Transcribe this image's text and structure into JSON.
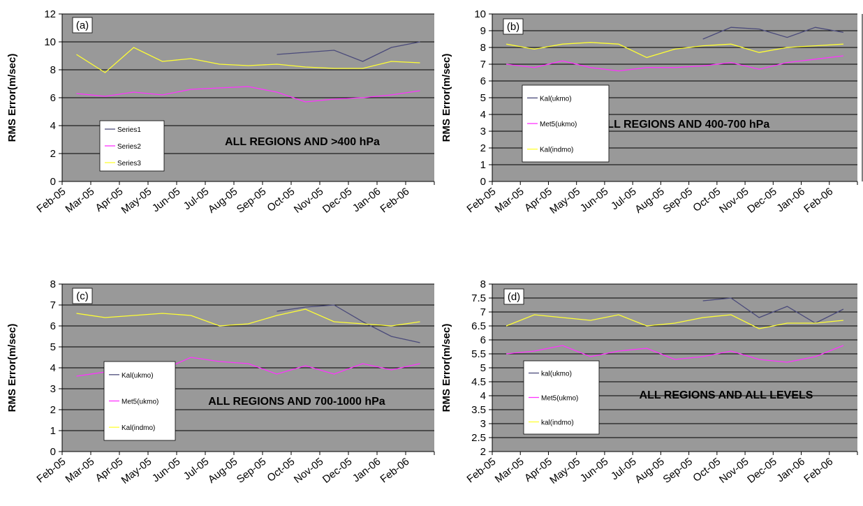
{
  "colors": {
    "plot_bg": "#999999",
    "grid": "#000000",
    "series_dark": "#4a4a7a",
    "series_magenta": "#ff33ff",
    "series_yellow": "#ffff33"
  },
  "months": [
    "Feb-05",
    "Mar-05",
    "Apr-05",
    "May-05",
    "Jun-05",
    "Jul-05",
    "Aug-05",
    "Sep-05",
    "Oct-05",
    "Nov-05",
    "Dec-05",
    "Jan-06",
    "Feb-06"
  ],
  "chart_data": [
    {
      "type": "line",
      "panel_label": "(a)",
      "title": "ALL REGIONS AND >400 hPa",
      "ylabel": "RMS Error(m/sec)",
      "ylim": [
        0,
        12
      ],
      "yticks": [
        "0",
        "2",
        "4",
        "6",
        "8",
        "10",
        "12"
      ],
      "grid": true,
      "legend_position": "left",
      "series": [
        {
          "name": "Series1",
          "color": "#4a4a7a",
          "x": [
            7.5,
            9.5,
            10.5,
            11.5,
            12.5
          ],
          "values": [
            9.1,
            9.4,
            8.6,
            9.6,
            10.0
          ]
        },
        {
          "name": "Series2",
          "color": "#ff33ff",
          "x": [
            0.5,
            1.5,
            2.5,
            3.5,
            4.5,
            5.5,
            6.5,
            7.5,
            8.5,
            9.5,
            10.5,
            11.5,
            12.5
          ],
          "values": [
            6.3,
            6.1,
            6.4,
            6.2,
            6.6,
            6.7,
            6.8,
            6.4,
            5.7,
            5.9,
            6.0,
            6.2,
            6.5
          ]
        },
        {
          "name": "Series3",
          "color": "#ffff33",
          "x": [
            0.5,
            1.5,
            2.5,
            3.5,
            4.5,
            5.5,
            6.5,
            7.5,
            8.5,
            9.5,
            10.5,
            11.5,
            12.5
          ],
          "values": [
            9.1,
            7.8,
            9.6,
            8.6,
            8.8,
            8.4,
            8.3,
            8.4,
            8.2,
            8.1,
            8.1,
            8.6,
            8.5
          ]
        }
      ]
    },
    {
      "type": "line",
      "panel_label": "(b)",
      "title": "ALL REGIONS AND 400-700 hPa",
      "ylabel": "RMS Error(m/sec)",
      "ylim": [
        0,
        10
      ],
      "yticks": [
        "0",
        "1",
        "2",
        "3",
        "4",
        "5",
        "6",
        "7",
        "8",
        "9",
        "10"
      ],
      "grid": true,
      "legend_position": "left",
      "series": [
        {
          "name": "Kal(ukmo)",
          "color": "#4a4a7a",
          "x": [
            7.5,
            8.5,
            9.5,
            10.5,
            11.5,
            12.5
          ],
          "values": [
            8.5,
            9.2,
            9.1,
            8.6,
            9.2,
            8.9
          ]
        },
        {
          "name": "Met5(ukmo)",
          "color": "#ff33ff",
          "x": [
            0.5,
            1.5,
            2.5,
            3.5,
            4.5,
            5.5,
            6.5,
            7.5,
            8.5,
            9.5,
            10.5,
            11.5,
            12.5
          ],
          "values": [
            7.0,
            6.8,
            7.2,
            6.8,
            6.6,
            6.8,
            6.8,
            6.9,
            7.1,
            6.7,
            7.1,
            7.3,
            7.5
          ]
        },
        {
          "name": "Kal(indmo)",
          "color": "#ffff33",
          "x": [
            0.5,
            1.5,
            2.5,
            3.5,
            4.5,
            5.5,
            6.5,
            7.5,
            8.5,
            9.5,
            10.5,
            11.5,
            12.5
          ],
          "values": [
            8.2,
            7.9,
            8.2,
            8.3,
            8.2,
            7.4,
            7.9,
            8.1,
            8.2,
            7.7,
            8.0,
            8.1,
            8.2
          ]
        }
      ]
    },
    {
      "type": "line",
      "panel_label": "(c)",
      "title": "ALL REGIONS AND 700-1000 hPa",
      "ylabel": "RMS Error(m/sec)",
      "ylim": [
        0,
        8
      ],
      "yticks": [
        "0",
        "1",
        "2",
        "3",
        "4",
        "5",
        "6",
        "7",
        "8"
      ],
      "grid": true,
      "legend_position": "left",
      "series": [
        {
          "name": "Kal(ukmo)",
          "color": "#4a4a7a",
          "x": [
            7.5,
            8.5,
            9.5,
            10.5,
            11.5,
            12.5
          ],
          "values": [
            6.7,
            6.9,
            7.0,
            6.2,
            5.5,
            5.2
          ]
        },
        {
          "name": "Met5(ukmo)",
          "color": "#ff33ff",
          "x": [
            0.5,
            1.5,
            2.5,
            3.5,
            4.5,
            5.5,
            6.5,
            7.5,
            8.5,
            9.5,
            10.5,
            11.5,
            12.5
          ],
          "values": [
            3.6,
            3.8,
            4.0,
            3.9,
            4.5,
            4.3,
            4.2,
            3.7,
            4.1,
            3.7,
            4.2,
            3.9,
            4.2
          ]
        },
        {
          "name": "Kal(indmo)",
          "color": "#ffff33",
          "x": [
            0.5,
            1.5,
            2.5,
            3.5,
            4.5,
            5.5,
            6.5,
            7.5,
            8.5,
            9.5,
            10.5,
            11.5,
            12.5
          ],
          "values": [
            6.6,
            6.4,
            6.5,
            6.6,
            6.5,
            6.0,
            6.1,
            6.5,
            6.8,
            6.2,
            6.1,
            6.0,
            6.2
          ]
        }
      ]
    },
    {
      "type": "line",
      "panel_label": "(d)",
      "title": "ALL REGIONS AND ALL LEVELS",
      "ylabel": "RMS Error(m/sec)",
      "ylim": [
        2,
        8
      ],
      "yticks": [
        "2",
        "2.5",
        "3",
        "3.5",
        "4",
        "4.5",
        "5",
        "5.5",
        "6",
        "6.5",
        "7",
        "7.5",
        "8"
      ],
      "grid": true,
      "legend_position": "left",
      "series": [
        {
          "name": "kal(ukmo)",
          "color": "#4a4a7a",
          "x": [
            7.5,
            8.5,
            9.5,
            10.5,
            11.5,
            12.5
          ],
          "values": [
            7.4,
            7.5,
            6.8,
            7.2,
            6.6,
            7.1
          ]
        },
        {
          "name": "Met5(ukmo)",
          "color": "#ff33ff",
          "x": [
            0.5,
            1.5,
            2.5,
            3.5,
            4.5,
            5.5,
            6.5,
            7.5,
            8.5,
            9.5,
            10.5,
            11.5,
            12.5
          ],
          "values": [
            5.5,
            5.6,
            5.8,
            5.4,
            5.6,
            5.7,
            5.3,
            5.4,
            5.6,
            5.3,
            5.2,
            5.4,
            5.8
          ]
        },
        {
          "name": "kal(indmo)",
          "color": "#ffff33",
          "x": [
            0.5,
            1.5,
            2.5,
            3.5,
            4.5,
            5.5,
            6.5,
            7.5,
            8.5,
            9.5,
            10.5,
            11.5,
            12.5
          ],
          "values": [
            6.5,
            6.9,
            6.8,
            6.7,
            6.9,
            6.5,
            6.6,
            6.8,
            6.9,
            6.4,
            6.6,
            6.6,
            6.7
          ]
        }
      ]
    }
  ]
}
